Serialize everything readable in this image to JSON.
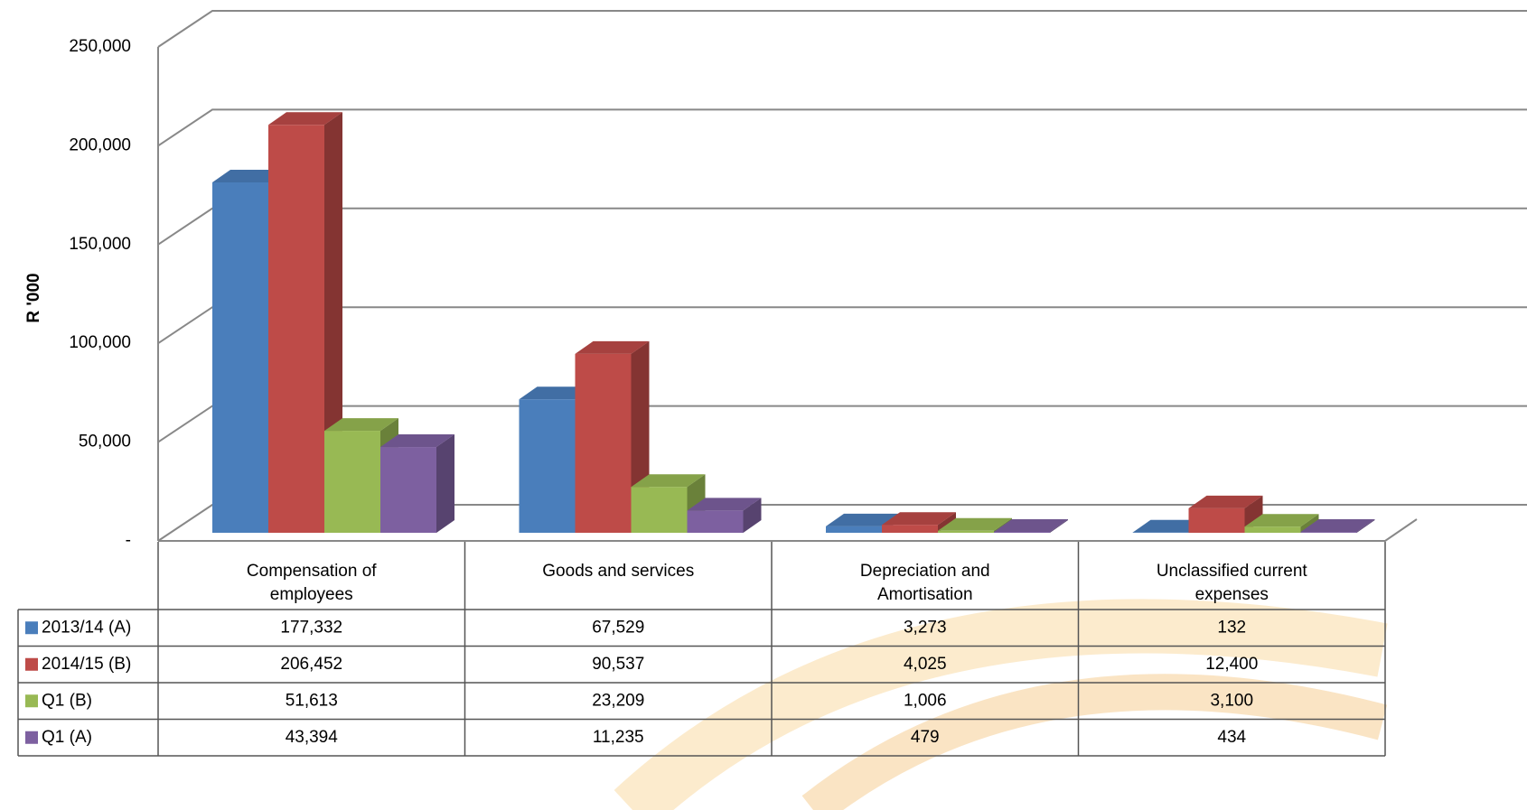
{
  "chart_data": {
    "type": "bar3d",
    "y_label": "R '000",
    "categories": [
      "Compensation of employees",
      "Goods and services",
      "Depreciation and Amortisation",
      "Unclassified current expenses"
    ],
    "series": [
      {
        "name": "2013/14 (A)",
        "color": "#4a7ebb",
        "values": [
          177332,
          67529,
          3273,
          132
        ],
        "value_labels": [
          "177,332",
          "67,529",
          "3,273",
          "132"
        ]
      },
      {
        "name": "2014/15 (B)",
        "color": "#be4b48",
        "values": [
          206452,
          90537,
          4025,
          12400
        ],
        "value_labels": [
          "206,452",
          "90,537",
          "4,025",
          "12,400"
        ]
      },
      {
        "name": "Q1 (B)",
        "color": "#98b954",
        "values": [
          51613,
          23209,
          1006,
          3100
        ],
        "value_labels": [
          "51,613",
          "23,209",
          "1,006",
          "3,100"
        ]
      },
      {
        "name": "Q1 (A)",
        "color": "#7d60a0",
        "values": [
          43394,
          11235,
          479,
          434
        ],
        "value_labels": [
          "43,394",
          "11,235",
          "479",
          "434"
        ]
      }
    ],
    "ylim": [
      0,
      250000
    ],
    "yticks": [
      {
        "value": 0,
        "label": "-"
      },
      {
        "value": 50000,
        "label": "50,000"
      },
      {
        "value": 100000,
        "label": "100,000"
      },
      {
        "value": 150000,
        "label": "150,000"
      },
      {
        "value": 200000,
        "label": "200,000"
      },
      {
        "value": 250000,
        "label": "250,000"
      }
    ],
    "grid": true
  }
}
